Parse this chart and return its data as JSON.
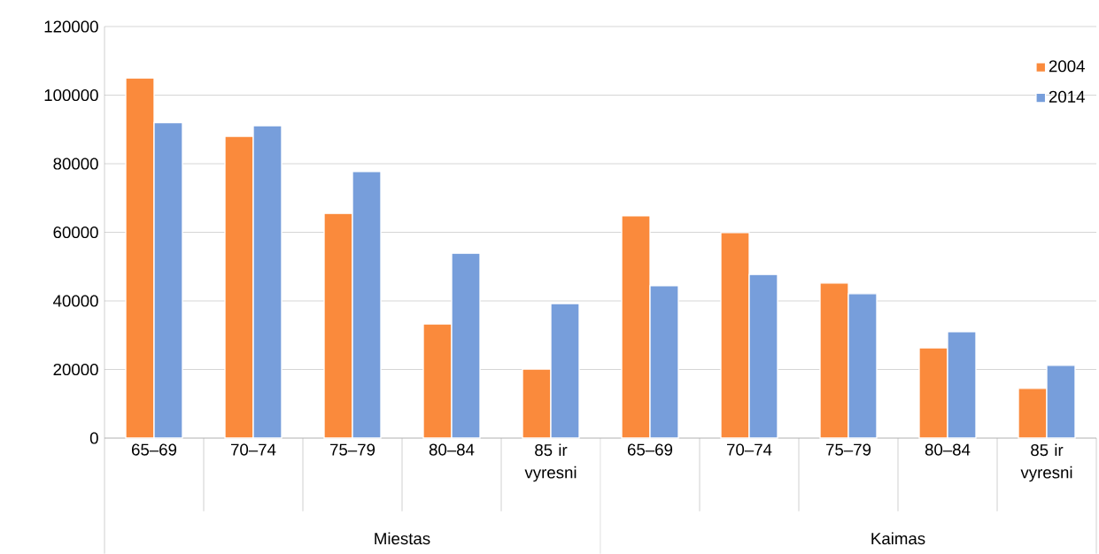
{
  "chart_data": {
    "type": "bar",
    "categories": [
      "65–69",
      "70–74",
      "75–79",
      "80–84",
      "85 ir vyresni",
      "65–69",
      "70–74",
      "75–79",
      "80–84",
      "85 ir vyresni"
    ],
    "series": [
      {
        "name": "2004",
        "color": "#fa8a3c",
        "values": [
          105000,
          88000,
          65500,
          33300,
          20100,
          64800,
          59900,
          45200,
          26300,
          14500
        ]
      },
      {
        "name": "2014",
        "color": "#779edb",
        "values": [
          92000,
          91100,
          77700,
          53900,
          39200,
          44400,
          47700,
          42100,
          31000,
          21200
        ]
      }
    ],
    "annotations": [
      "Miestas",
      "Kaimas"
    ],
    "ylim": [
      0,
      120000
    ],
    "yticks": [
      0,
      20000,
      40000,
      60000,
      80000,
      100000,
      120000
    ],
    "grid": "y",
    "legend": "top right"
  }
}
